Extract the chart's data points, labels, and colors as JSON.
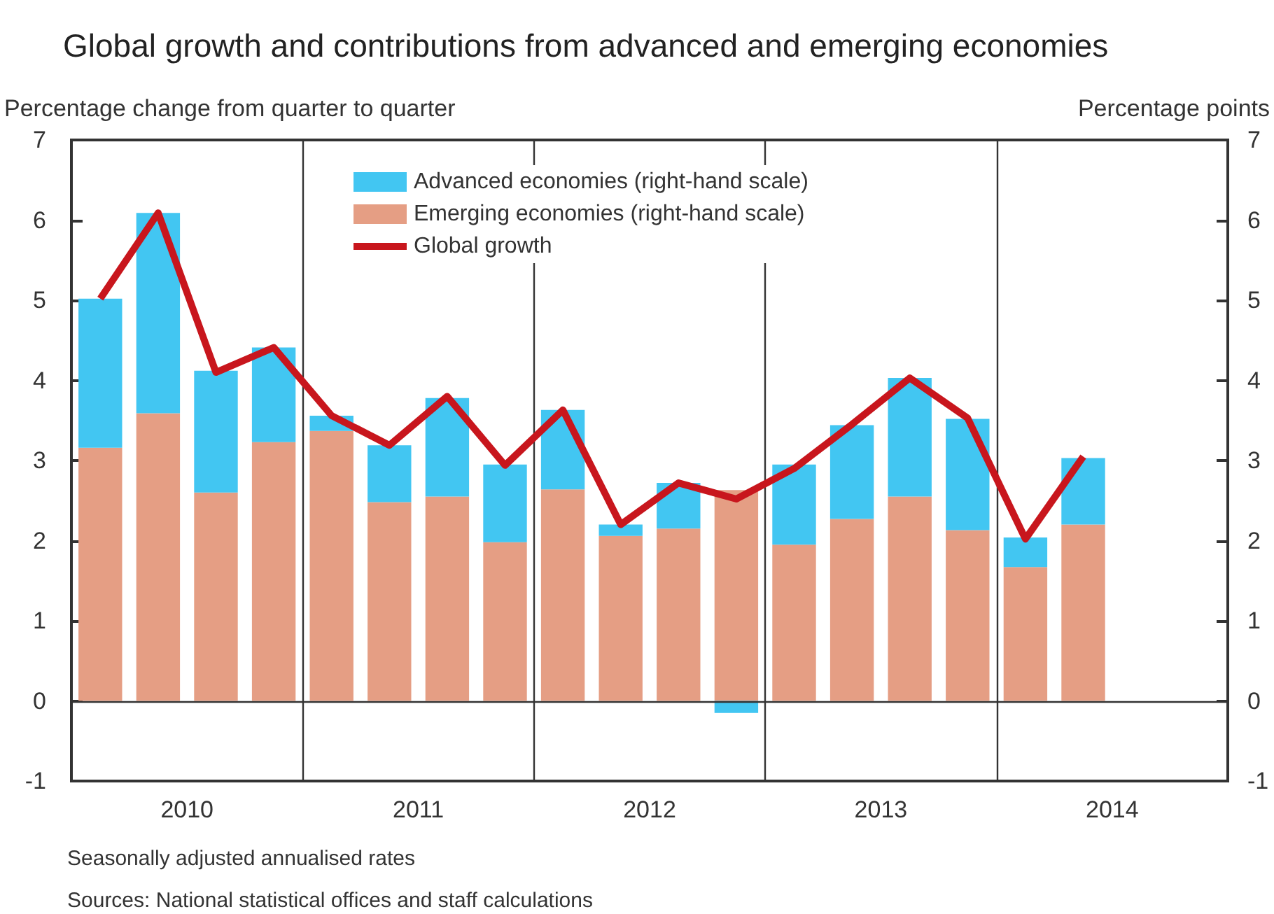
{
  "chart_data": {
    "type": "bar",
    "title": "Global growth and contributions from advanced and emerging economies",
    "ylabel": "Percentage change from quarter to quarter",
    "y2label": "Percentage points",
    "x": [
      2010.125,
      2010.375,
      2010.625,
      2010.875,
      2011.125,
      2011.375,
      2011.625,
      2011.875,
      2012.125,
      2012.375,
      2012.625,
      2012.875,
      2013.125,
      2013.375,
      2013.625,
      2013.875,
      2014.125,
      2014.375
    ],
    "xlim": [
      2010,
      2015
    ],
    "xticks": [
      {
        "value": 2010.5,
        "label": "2010"
      },
      {
        "value": 2011.5,
        "label": "2011"
      },
      {
        "value": 2012.5,
        "label": "2012"
      },
      {
        "value": 2013.5,
        "label": "2013"
      },
      {
        "value": 2014.5,
        "label": "2014"
      }
    ],
    "ylim": [
      -1,
      7
    ],
    "yticks": [
      -1,
      0,
      1,
      2,
      3,
      4,
      5,
      6,
      7
    ],
    "y2lim": [
      -1,
      7
    ],
    "y2ticks": [
      -1,
      0,
      1,
      2,
      3,
      4,
      5,
      6,
      7
    ],
    "stacked": true,
    "series": [
      {
        "name": "Emerging economies (right-hand scale)",
        "color": "#e59e84",
        "values": [
          3.16,
          3.59,
          2.6,
          3.23,
          3.37,
          2.48,
          2.55,
          1.98,
          2.64,
          2.06,
          2.15,
          2.63,
          1.95,
          2.27,
          2.55,
          2.13,
          1.67,
          2.2
        ]
      },
      {
        "name": "Advanced economies (right-hand scale)",
        "color": "#42c6f2",
        "values": [
          1.86,
          2.5,
          1.52,
          1.18,
          0.19,
          0.71,
          1.23,
          0.97,
          0.99,
          0.14,
          0.57,
          -0.15,
          1.0,
          1.17,
          1.48,
          1.39,
          0.37,
          0.83
        ]
      },
      {
        "name": "Global growth",
        "type": "line",
        "color": "#c8161d",
        "values": [
          5.02,
          6.09,
          4.1,
          4.41,
          3.56,
          3.19,
          3.8,
          2.94,
          3.63,
          2.2,
          2.72,
          2.52,
          2.9,
          3.45,
          4.03,
          3.53,
          2.02,
          3.05
        ]
      }
    ],
    "ref_lines": [
      {
        "axis": "y",
        "value": 0
      },
      {
        "axis": "x",
        "value": 2011
      },
      {
        "axis": "x",
        "value": 2012
      },
      {
        "axis": "x",
        "value": 2013
      },
      {
        "axis": "x",
        "value": 2014
      }
    ],
    "legend": "top",
    "grid": false,
    "annotations": [
      "Seasonally adjusted annualised rates",
      "Sources: National statistical offices and staff calculations"
    ]
  }
}
